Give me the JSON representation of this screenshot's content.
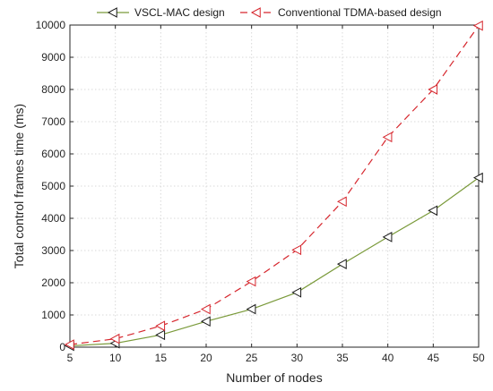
{
  "chart_data": {
    "type": "line",
    "title": "",
    "xlabel": "Number of nodes",
    "ylabel": "Total control frames time (ms)",
    "x": [
      5,
      10,
      15,
      20,
      25,
      30,
      35,
      40,
      45,
      50
    ],
    "xlim": [
      5,
      50
    ],
    "ylim": [
      0,
      10000
    ],
    "x_ticks": [
      5,
      10,
      15,
      20,
      25,
      30,
      35,
      40,
      45,
      50
    ],
    "y_ticks": [
      0,
      1000,
      2000,
      3000,
      4000,
      5000,
      6000,
      7000,
      8000,
      9000,
      10000
    ],
    "grid": true,
    "legend_position": "top",
    "series": [
      {
        "name": "VSCL-MAC design",
        "color": "#7a9a3a",
        "line_style": "solid",
        "marker": "left-triangle",
        "marker_color": "#1a1a1a",
        "values": [
          40,
          120,
          380,
          800,
          1180,
          1700,
          2580,
          3420,
          4240,
          5260
        ]
      },
      {
        "name": "Conventional TDMA-based design",
        "color": "#d6262d",
        "line_style": "dashed",
        "marker": "left-triangle",
        "marker_color": "#d6262d",
        "values": [
          80,
          260,
          660,
          1180,
          2040,
          3020,
          4520,
          6520,
          8000,
          9980
        ]
      }
    ]
  }
}
